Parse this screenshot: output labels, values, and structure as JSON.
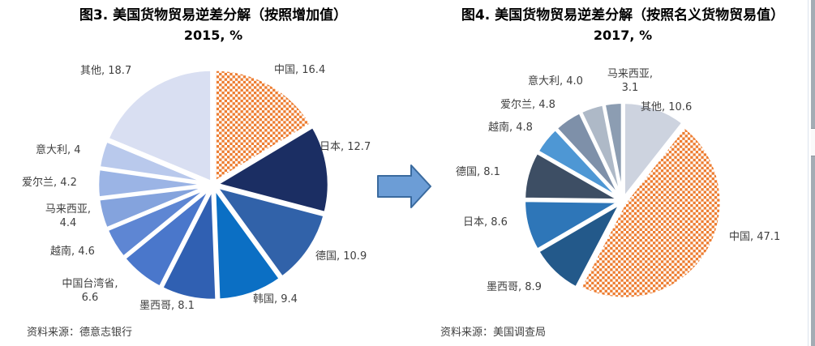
{
  "page": {
    "background": "#FFFFFF"
  },
  "colors": {
    "checker_orange": "#ED7D31",
    "label_text": "#3F3F3F",
    "title_text": "#000000",
    "arrow_fill": "#6C9DD6",
    "arrow_stroke": "#3A6A9E"
  },
  "arrow": {
    "name": "right-arrow"
  },
  "charts": [
    {
      "id": "fig3",
      "title": "图3. 美国货物贸易逆差分解（按照增加值）",
      "subtitle": "2015, %",
      "source": "资料来源：德意志银行",
      "chart_data": {
        "type": "pie",
        "unit": "%",
        "start_angle_deg": 0,
        "direction": "clockwise",
        "legend": "none",
        "slices": [
          {
            "label": "中国",
            "value": 16.4,
            "value_text": "16.4",
            "fill": "checker-orange"
          },
          {
            "label": "日本",
            "value": 12.7,
            "value_text": "12.7",
            "fill": "#1B2E63"
          },
          {
            "label": "德国",
            "value": 10.9,
            "value_text": "10.9",
            "fill": "#3162A9"
          },
          {
            "label": "韩国",
            "value": 9.4,
            "value_text": "9.4",
            "fill": "#0B6FC4"
          },
          {
            "label": "墨西哥",
            "value": 8.1,
            "value_text": "8.1",
            "fill": "#3060B2"
          },
          {
            "label": "中国台湾省",
            "value": 6.6,
            "value_text": "6.6",
            "fill": "#4A77CB"
          },
          {
            "label": "越南",
            "value": 4.6,
            "value_text": "4.6",
            "fill": "#5E86D3"
          },
          {
            "label": "马来西亚",
            "value": 4.4,
            "value_text": "4.4",
            "fill": "#84A3DD"
          },
          {
            "label": "爱尔兰",
            "value": 4.2,
            "value_text": "4.2",
            "fill": "#9BB4E5"
          },
          {
            "label": "意大利",
            "value": 4,
            "value_text": "4",
            "fill": "#B9C9EC"
          },
          {
            "label": "其他",
            "value": 18.7,
            "value_text": "18.7",
            "fill": "#D9DFF2"
          }
        ]
      }
    },
    {
      "id": "fig4",
      "title": "图4. 美国货物贸易逆差分解（按照名义货物贸易值）",
      "subtitle": "2017, %",
      "source": "资料来源：美国调查局",
      "chart_data": {
        "type": "pie",
        "unit": "%",
        "start_angle_deg": 0,
        "direction": "clockwise",
        "legend": "none",
        "slices": [
          {
            "label": "其他",
            "value": 10.6,
            "value_text": "10.6",
            "fill": "#CDD3DF"
          },
          {
            "label": "中国",
            "value": 47.1,
            "value_text": "47.1",
            "fill": "checker-orange"
          },
          {
            "label": "墨西哥",
            "value": 8.9,
            "value_text": "8.9",
            "fill": "#23598A"
          },
          {
            "label": "日本",
            "value": 8.6,
            "value_text": "8.6",
            "fill": "#2E76B8"
          },
          {
            "label": "德国",
            "value": 8.1,
            "value_text": "8.1",
            "fill": "#3D4E64"
          },
          {
            "label": "越南",
            "value": 4.8,
            "value_text": "4.8",
            "fill": "#4E97D4"
          },
          {
            "label": "爱尔兰",
            "value": 4.8,
            "value_text": "4.8",
            "fill": "#7E90A9"
          },
          {
            "label": "意大利",
            "value": 4,
            "value_text": "4.0",
            "fill": "#AEB9C7"
          },
          {
            "label": "马来西亚",
            "value": 3.1,
            "value_text": "3.1",
            "fill": "#8C9DB2"
          }
        ]
      }
    }
  ]
}
